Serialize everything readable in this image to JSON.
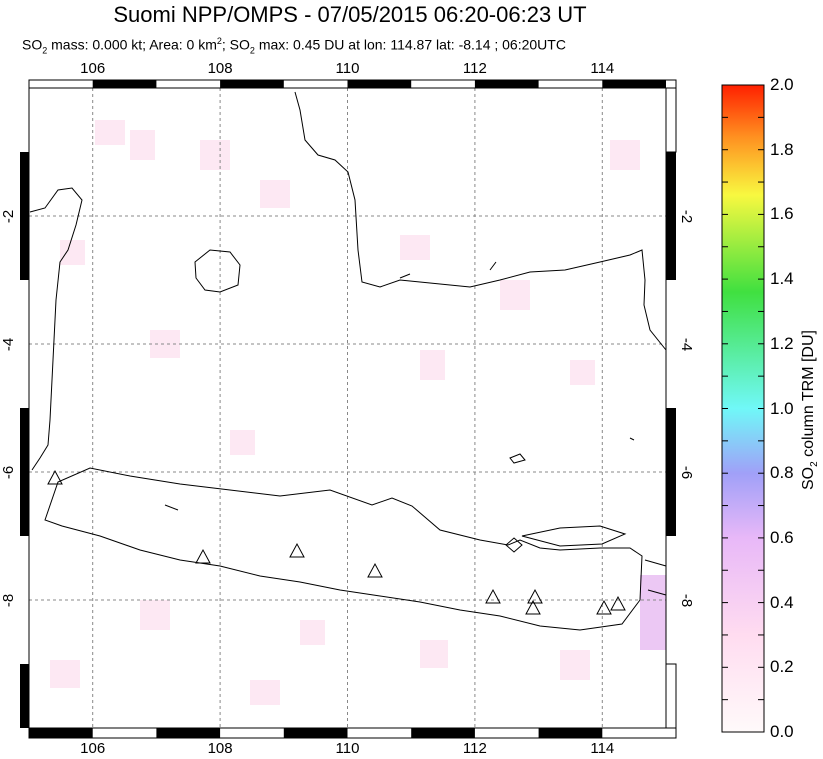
{
  "title": "Suomi NPP/OMPS - 07/05/2015 06:20-06:23 UT",
  "subtitle": {
    "pre": "SO",
    "sub": "2",
    "mid1": " mass: 0.000 kt; Area: 0 km",
    "sup": "2",
    "mid2": "; SO",
    "sub2": "2",
    "post": " max: 0.45 DU at lon: 114.87 lat: -8.14 ; 06:20UTC"
  },
  "map": {
    "lon_ticks": [
      "106",
      "108",
      "110",
      "112",
      "114"
    ],
    "lat_ticks": [
      "-2",
      "-4",
      "-6",
      "-8"
    ],
    "lon_range": [
      105,
      115
    ],
    "lat_range": [
      -10,
      0
    ],
    "grid": true,
    "volcano_marker": "triangle-icon"
  },
  "colorbar": {
    "ticks": [
      "2.0",
      "1.8",
      "1.6",
      "1.4",
      "1.2",
      "1.0",
      "0.8",
      "0.6",
      "0.4",
      "0.2",
      "0.0"
    ],
    "label_pre": "SO",
    "label_sub": "2",
    "label_post": " column TRM [DU]",
    "range": [
      0,
      2
    ],
    "colors": [
      "#fffafa",
      "#ffd8f0",
      "#e8b8f8",
      "#a0a0f8",
      "#70f8f8",
      "#40e040",
      "#f8f840",
      "#ff9020",
      "#ff2000"
    ]
  }
}
